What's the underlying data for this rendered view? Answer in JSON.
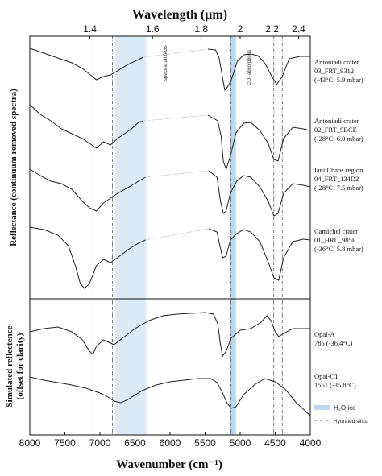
{
  "chart_data": {
    "type": "line",
    "title": "",
    "xlabel_top": "Wavelength (µm)",
    "xlabel_bottom": "Wavenumber (cm⁻¹)",
    "ylabel_top": "Reflectance (continuum removed spectra)",
    "ylabel_bottom_line1": "Simulated reflectence",
    "ylabel_bottom_line2": "(offset for clarity)",
    "x_axis": {
      "reversed": true,
      "range": [
        8000,
        4000
      ],
      "ticks": [
        8000,
        7500,
        7000,
        6500,
        6000,
        5500,
        5000,
        4500,
        4000
      ]
    },
    "top_axis_ticks_um": [
      "1.4",
      "1.6",
      "1.8",
      "2",
      "2.2",
      "2.4"
    ],
    "hydrated_silica_lines_cm": [
      7100,
      6820,
      5260,
      5130,
      4520,
      4400
    ],
    "h2o_ice_band_cm": [
      5140,
      5060
    ],
    "silica_band_cm": [
      6780,
      6340
    ],
    "annotations": {
      "spectral_artifacts": "spectral artifacts",
      "co2": "CO₂ absorptions"
    },
    "legend": {
      "ice": "H₂O ice",
      "silica": "Hydrated silica"
    },
    "series": [
      {
        "label": [
          "Antoniadi crater",
          "03_FRT_9312",
          "(-43°C; 5.9 mbar)"
        ],
        "points": [
          [
            8000,
            60
          ],
          [
            7800,
            66
          ],
          [
            7600,
            72
          ],
          [
            7400,
            78
          ],
          [
            7250,
            85
          ],
          [
            7150,
            92
          ],
          [
            7050,
            99
          ],
          [
            6950,
            95
          ],
          [
            6850,
            93
          ],
          [
            6750,
            88
          ],
          [
            6600,
            80
          ],
          [
            6450,
            74
          ],
          [
            6380,
            71
          ]
        ],
        "gap": [
          [
            6380,
            71
          ],
          [
            5460,
            61
          ]
        ],
        "points2": [
          [
            5460,
            61
          ],
          [
            5350,
            62
          ],
          [
            5300,
            72
          ],
          [
            5260,
            92
          ],
          [
            5220,
            112
          ],
          [
            5180,
            108
          ],
          [
            5130,
            100
          ],
          [
            5040,
            76
          ],
          [
            4950,
            68
          ],
          [
            4850,
            67
          ],
          [
            4750,
            69
          ],
          [
            4650,
            78
          ],
          [
            4560,
            93
          ],
          [
            4480,
            105
          ],
          [
            4400,
            95
          ],
          [
            4300,
            73
          ],
          [
            4150,
            70
          ],
          [
            4000,
            70
          ]
        ]
      },
      {
        "label": [
          "Antoniadi crater",
          "02_FRT_9BCE",
          "(-28°C; 6.0 mbar)"
        ],
        "points": [
          [
            8000,
            130
          ],
          [
            7850,
            142
          ],
          [
            7700,
            150
          ],
          [
            7550,
            160
          ],
          [
            7400,
            166
          ],
          [
            7250,
            172
          ],
          [
            7150,
            178
          ],
          [
            7050,
            184
          ],
          [
            6950,
            176
          ],
          [
            6850,
            180
          ],
          [
            6750,
            172
          ],
          [
            6650,
            166
          ],
          [
            6550,
            160
          ],
          [
            6450,
            152
          ],
          [
            6380,
            150
          ]
        ],
        "gap": [
          [
            6380,
            150
          ],
          [
            5460,
            143
          ]
        ],
        "points2": [
          [
            5460,
            143
          ],
          [
            5320,
            150
          ],
          [
            5270,
            170
          ],
          [
            5240,
            200
          ],
          [
            5200,
            210
          ],
          [
            5140,
            194
          ],
          [
            5060,
            165
          ],
          [
            4950,
            153
          ],
          [
            4850,
            152
          ],
          [
            4720,
            162
          ],
          [
            4600,
            178
          ],
          [
            4520,
            198
          ],
          [
            4460,
            200
          ],
          [
            4380,
            172
          ],
          [
            4250,
            158
          ],
          [
            4100,
            160
          ],
          [
            4000,
            162
          ]
        ]
      },
      {
        "label": [
          "Iani Chaos region",
          "04_FRT_134D2",
          "(-28°C; 7.5 mbar)"
        ],
        "points": [
          [
            8000,
            210
          ],
          [
            7850,
            218
          ],
          [
            7700,
            225
          ],
          [
            7550,
            228
          ],
          [
            7400,
            235
          ],
          [
            7250,
            250
          ],
          [
            7150,
            258
          ],
          [
            7050,
            262
          ],
          [
            6950,
            252
          ],
          [
            6850,
            246
          ],
          [
            6750,
            240
          ],
          [
            6600,
            233
          ],
          [
            6450,
            225
          ],
          [
            6350,
            220
          ]
        ],
        "gap": [
          [
            6350,
            220
          ],
          [
            5450,
            212
          ]
        ],
        "points2": [
          [
            5450,
            212
          ],
          [
            5330,
            220
          ],
          [
            5280,
            250
          ],
          [
            5240,
            265
          ],
          [
            5200,
            262
          ],
          [
            5140,
            240
          ],
          [
            5050,
            225
          ],
          [
            4950,
            218
          ],
          [
            4850,
            220
          ],
          [
            4720,
            232
          ],
          [
            4600,
            250
          ],
          [
            4520,
            268
          ],
          [
            4460,
            265
          ],
          [
            4380,
            240
          ],
          [
            4250,
            228
          ],
          [
            4100,
            230
          ],
          [
            4000,
            232
          ]
        ]
      },
      {
        "label": [
          "Camichel crater",
          "01_HRL_985E",
          "(-36°C; 5.8 mbar)"
        ],
        "points": [
          [
            8000,
            282
          ],
          [
            7800,
            285
          ],
          [
            7600,
            292
          ],
          [
            7450,
            305
          ],
          [
            7350,
            330
          ],
          [
            7280,
            352
          ],
          [
            7220,
            358
          ],
          [
            7150,
            352
          ],
          [
            7050,
            330
          ],
          [
            6950,
            322
          ],
          [
            6850,
            326
          ],
          [
            6750,
            320
          ],
          [
            6600,
            310
          ],
          [
            6450,
            302
          ],
          [
            6350,
            298
          ]
        ],
        "gap": [
          [
            6350,
            298
          ],
          [
            5450,
            284
          ]
        ],
        "points2": [
          [
            5450,
            284
          ],
          [
            5330,
            288
          ],
          [
            5290,
            305
          ],
          [
            5250,
            320
          ],
          [
            5200,
            318
          ],
          [
            5140,
            298
          ],
          [
            5050,
            290
          ],
          [
            4950,
            285
          ],
          [
            4850,
            288
          ],
          [
            4720,
            300
          ],
          [
            4600,
            325
          ],
          [
            4520,
            345
          ],
          [
            4450,
            348
          ],
          [
            4380,
            320
          ],
          [
            4250,
            300
          ],
          [
            4100,
            297
          ],
          [
            4000,
            298
          ]
        ]
      },
      {
        "label": [
          "Opal-A",
          "785 (-36.4°C)"
        ],
        "points": [
          [
            8000,
            412
          ],
          [
            7800,
            408
          ],
          [
            7600,
            406
          ],
          [
            7400,
            412
          ],
          [
            7250,
            422
          ],
          [
            7150,
            436
          ],
          [
            7100,
            440
          ],
          [
            7050,
            430
          ],
          [
            6950,
            422
          ],
          [
            6800,
            428
          ],
          [
            6650,
            418
          ],
          [
            6500,
            408
          ],
          [
            6300,
            398
          ],
          [
            6100,
            392
          ],
          [
            5900,
            390
          ],
          [
            5700,
            389
          ],
          [
            5500,
            388
          ],
          [
            5380,
            390
          ],
          [
            5320,
            402
          ],
          [
            5280,
            428
          ],
          [
            5250,
            442
          ],
          [
            5200,
            436
          ],
          [
            5130,
            420
          ],
          [
            5000,
            410
          ],
          [
            4850,
            408
          ],
          [
            4700,
            400
          ],
          [
            4620,
            392
          ],
          [
            4560,
            398
          ],
          [
            4500,
            412
          ],
          [
            4450,
            418
          ],
          [
            4380,
            414
          ],
          [
            4250,
            408
          ],
          [
            4100,
            408
          ],
          [
            4000,
            408
          ]
        ]
      },
      {
        "label": [
          "Opal-CT",
          "1551 (-35.8°C)"
        ],
        "points": [
          [
            8000,
            468
          ],
          [
            7800,
            472
          ],
          [
            7600,
            475
          ],
          [
            7400,
            478
          ],
          [
            7200,
            482
          ],
          [
            7100,
            485
          ],
          [
            7000,
            488
          ],
          [
            6900,
            492
          ],
          [
            6800,
            498
          ],
          [
            6700,
            500
          ],
          [
            6600,
            496
          ],
          [
            6400,
            485
          ],
          [
            6200,
            478
          ],
          [
            6000,
            474
          ],
          [
            5800,
            472
          ],
          [
            5600,
            470
          ],
          [
            5420,
            470
          ],
          [
            5330,
            475
          ],
          [
            5260,
            486
          ],
          [
            5190,
            500
          ],
          [
            5130,
            507
          ],
          [
            5060,
            505
          ],
          [
            4950,
            490
          ],
          [
            4800,
            478
          ],
          [
            4650,
            470
          ],
          [
            4500,
            474
          ],
          [
            4350,
            484
          ],
          [
            4200,
            500
          ],
          [
            4050,
            512
          ],
          [
            4000,
            516
          ]
        ]
      }
    ]
  }
}
